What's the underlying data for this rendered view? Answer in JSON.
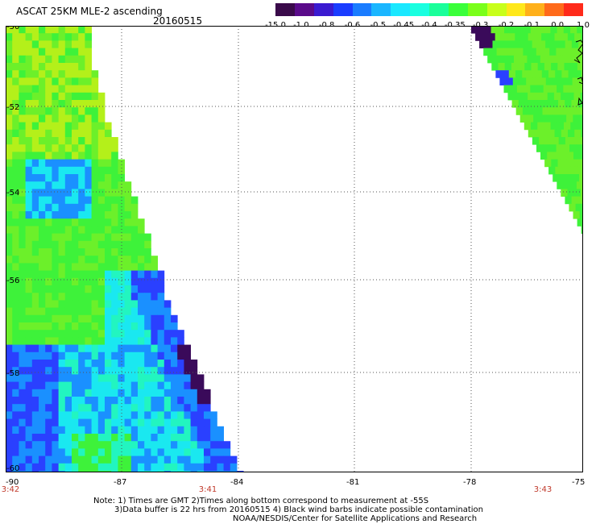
{
  "header": {
    "title": "ASCAT 25KM MLE-2 ascending",
    "date": "20160515"
  },
  "colorbar": {
    "colors": [
      "#3a0a4a",
      "#5a0a8a",
      "#3a1ad0",
      "#1a3cff",
      "#1a7cff",
      "#1ab6ff",
      "#1ae8ff",
      "#1affe0",
      "#1aff9a",
      "#3aff3a",
      "#7aff1a",
      "#c8ff1a",
      "#ffe81a",
      "#ffb01a",
      "#ff6a1a",
      "#ff2a1a"
    ],
    "labels": [
      "-15.0",
      "-1.0",
      "-0.8",
      "-0.6",
      "-0.5",
      "-0.45",
      "-0.4",
      "-0.35",
      "-0.3",
      "-0.2",
      "-0.1",
      "0.0",
      "1.0"
    ]
  },
  "map": {
    "lon_ticks": [
      "-90",
      "-87",
      "-84",
      "-81",
      "-78",
      "-75"
    ],
    "lat_ticks": [
      "-50",
      "-52",
      "-54",
      "-56",
      "-58",
      "-60"
    ],
    "time_labels": [
      "3:42",
      "3:41",
      "3:43"
    ],
    "colors": {
      "green": "#3ef23a",
      "light_green": "#6cf02a",
      "yellow_green": "#b4f01a",
      "cyan": "#1ae8f0",
      "light_cyan": "#22f5c0",
      "blue": "#2a40ff",
      "mid_blue": "#1a90ff",
      "dark_purple": "#3a0a5a",
      "grid": "#555555",
      "land": "#000000"
    }
  },
  "notes": {
    "line1": "Note: 1) Times are GMT 2)Times along bottom correspond to measurement at -55S",
    "line2": "3)Data buffer is 22 hrs from 20160515 4) Black wind barbs indicate possible contamination",
    "line3": "NOAA/NESDIS/Center for Satellite Applications and Research"
  }
}
